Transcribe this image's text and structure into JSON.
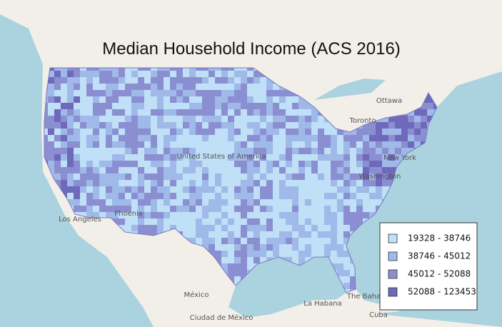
{
  "title": "Median Household Income (ACS 2016)",
  "legend": [
    {
      "label": "19328 - 38746",
      "color": "#bfe0f6"
    },
    {
      "label": "38746 - 45012",
      "color": "#9fb9e8"
    },
    {
      "label": "45012 - 52088",
      "color": "#8b8fd2"
    },
    {
      "label": "52088 - 123453",
      "color": "#6e69ba"
    }
  ],
  "places": [
    "Ottawa",
    "Toronto",
    "New York",
    "Washington",
    "United States of America",
    "Phoenix",
    "Los Angeles",
    "México",
    "Ciudad de México",
    "La Habana",
    "Cuba",
    "The Bahamas"
  ]
}
